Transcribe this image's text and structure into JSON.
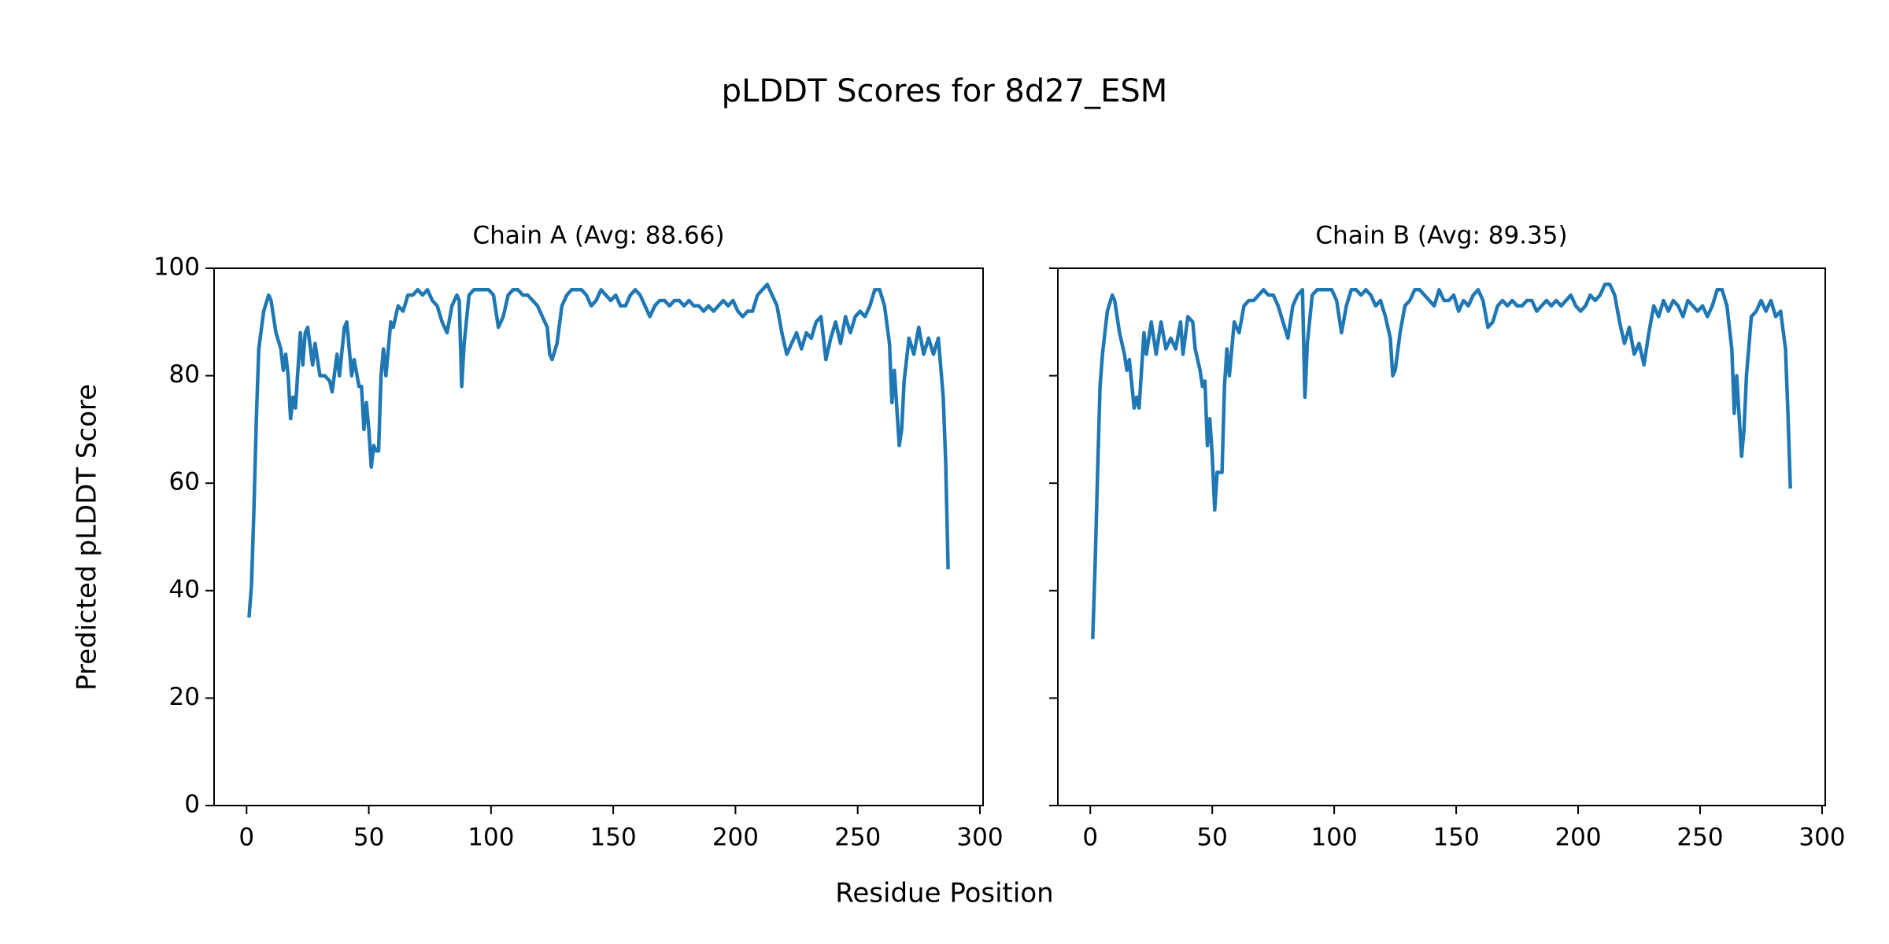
{
  "title": "pLDDT Scores for 8d27_ESM",
  "xlabel": "Residue Position",
  "ylabel": "Predicted pLDDT Score",
  "chart_data": [
    {
      "type": "line",
      "title": "Chain A (Avg: 88.66)",
      "color": "#1f77b4",
      "x": [
        1,
        2,
        3,
        4,
        5,
        7,
        9,
        10,
        12,
        14,
        15,
        16,
        17,
        18,
        19,
        20,
        22,
        23,
        24,
        25,
        27,
        28,
        30,
        32,
        34,
        35,
        37,
        38,
        40,
        41,
        43,
        44,
        46,
        47,
        48,
        49,
        50,
        51,
        52,
        53,
        54,
        55,
        56,
        57,
        59,
        60,
        62,
        64,
        66,
        68,
        70,
        72,
        74,
        76,
        78,
        80,
        82,
        84,
        86,
        87,
        88,
        89,
        91,
        93,
        95,
        97,
        99,
        101,
        103,
        105,
        107,
        109,
        111,
        113,
        115,
        117,
        119,
        121,
        123,
        124,
        125,
        127,
        129,
        131,
        133,
        135,
        137,
        139,
        141,
        143,
        145,
        147,
        149,
        151,
        153,
        155,
        157,
        159,
        161,
        163,
        165,
        167,
        169,
        171,
        173,
        175,
        177,
        179,
        181,
        183,
        185,
        187,
        189,
        191,
        193,
        195,
        197,
        199,
        201,
        203,
        205,
        207,
        209,
        211,
        213,
        215,
        217,
        219,
        221,
        223,
        225,
        227,
        229,
        231,
        233,
        235,
        237,
        239,
        241,
        243,
        245,
        247,
        249,
        251,
        253,
        255,
        257,
        259,
        261,
        263,
        264,
        265,
        267,
        268,
        269,
        271,
        273,
        275,
        277,
        279,
        281,
        283,
        285,
        286,
        287
      ],
      "values": [
        35,
        41,
        55,
        72,
        85,
        92,
        95,
        94,
        88,
        85,
        81,
        84,
        80,
        72,
        76,
        74,
        88,
        82,
        88,
        89,
        82,
        86,
        80,
        80,
        79,
        77,
        84,
        80,
        89,
        90,
        80,
        83,
        78,
        78,
        70,
        75,
        70,
        63,
        67,
        66,
        66,
        80,
        85,
        80,
        90,
        89,
        93,
        92,
        95,
        95,
        96,
        95,
        96,
        94,
        93,
        90,
        88,
        93,
        95,
        94,
        78,
        86,
        95,
        96,
        96,
        96,
        96,
        95,
        89,
        91,
        95,
        96,
        96,
        95,
        95,
        94,
        93,
        91,
        89,
        84,
        83,
        86,
        93,
        95,
        96,
        96,
        96,
        95,
        93,
        94,
        96,
        95,
        94,
        95,
        93,
        93,
        95,
        96,
        95,
        93,
        91,
        93,
        94,
        94,
        93,
        94,
        94,
        93,
        94,
        93,
        93,
        92,
        93,
        92,
        93,
        94,
        93,
        94,
        92,
        91,
        92,
        92,
        95,
        96,
        97,
        95,
        93,
        88,
        84,
        86,
        88,
        85,
        88,
        87,
        90,
        91,
        83,
        87,
        90,
        86,
        91,
        88,
        91,
        92,
        91,
        93,
        96,
        96,
        93,
        86,
        75,
        81,
        67,
        70,
        79,
        87,
        84,
        89,
        84,
        87,
        84,
        87,
        76,
        64,
        44
      ],
      "xlim": [
        -13.3,
        301.3
      ],
      "ylim": [
        0,
        100
      ],
      "xticks": [
        0,
        50,
        100,
        150,
        200,
        250,
        300
      ],
      "yticks": [
        0,
        20,
        40,
        60,
        80,
        100
      ]
    },
    {
      "type": "line",
      "title": "Chain B (Avg: 89.35)",
      "color": "#1f77b4",
      "x": [
        1,
        2,
        3,
        4,
        5,
        7,
        9,
        10,
        12,
        14,
        15,
        16,
        18,
        19,
        20,
        22,
        23,
        25,
        27,
        29,
        31,
        33,
        35,
        37,
        38,
        40,
        42,
        43,
        45,
        46,
        47,
        48,
        49,
        50,
        51,
        52,
        54,
        55,
        56,
        57,
        59,
        61,
        63,
        65,
        67,
        69,
        71,
        73,
        75,
        77,
        79,
        81,
        83,
        85,
        87,
        88,
        89,
        91,
        93,
        95,
        97,
        99,
        101,
        103,
        105,
        107,
        109,
        111,
        113,
        115,
        117,
        119,
        121,
        123,
        124,
        125,
        127,
        129,
        131,
        133,
        135,
        137,
        139,
        141,
        143,
        145,
        147,
        149,
        151,
        153,
        155,
        157,
        159,
        161,
        163,
        165,
        167,
        169,
        171,
        173,
        175,
        177,
        179,
        181,
        183,
        185,
        187,
        189,
        191,
        193,
        195,
        197,
        199,
        201,
        203,
        205,
        207,
        209,
        211,
        213,
        215,
        217,
        219,
        221,
        223,
        225,
        227,
        229,
        231,
        233,
        235,
        237,
        239,
        241,
        243,
        245,
        247,
        249,
        251,
        253,
        255,
        257,
        259,
        261,
        263,
        264,
        265,
        267,
        268,
        269,
        271,
        273,
        275,
        277,
        279,
        281,
        283,
        285,
        286,
        287
      ],
      "values": [
        31,
        45,
        62,
        78,
        84,
        92,
        95,
        94,
        88,
        84,
        81,
        83,
        74,
        76,
        74,
        88,
        84,
        90,
        84,
        90,
        85,
        87,
        85,
        90,
        84,
        91,
        90,
        85,
        81,
        78,
        79,
        67,
        72,
        65,
        55,
        62,
        62,
        78,
        85,
        80,
        90,
        88,
        93,
        94,
        94,
        95,
        96,
        95,
        95,
        93,
        90,
        87,
        93,
        95,
        96,
        76,
        86,
        95,
        96,
        96,
        96,
        96,
        94,
        88,
        93,
        96,
        96,
        95,
        96,
        95,
        93,
        94,
        91,
        87,
        80,
        81,
        88,
        93,
        94,
        96,
        96,
        95,
        94,
        93,
        96,
        94,
        94,
        95,
        92,
        94,
        93,
        95,
        96,
        94,
        89,
        90,
        93,
        94,
        93,
        94,
        93,
        93,
        94,
        94,
        92,
        93,
        94,
        93,
        94,
        93,
        94,
        95,
        93,
        92,
        93,
        95,
        94,
        95,
        97,
        97,
        95,
        90,
        86,
        89,
        84,
        86,
        82,
        88,
        93,
        91,
        94,
        92,
        94,
        93,
        91,
        94,
        93,
        92,
        93,
        91,
        93,
        96,
        96,
        93,
        85,
        73,
        80,
        65,
        70,
        80,
        91,
        92,
        94,
        92,
        94,
        91,
        92,
        85,
        73,
        59
      ],
      "xlim": [
        -13.3,
        301.3
      ],
      "ylim": [
        0,
        100
      ],
      "xticks": [
        0,
        50,
        100,
        150,
        200,
        250,
        300
      ]
    }
  ]
}
